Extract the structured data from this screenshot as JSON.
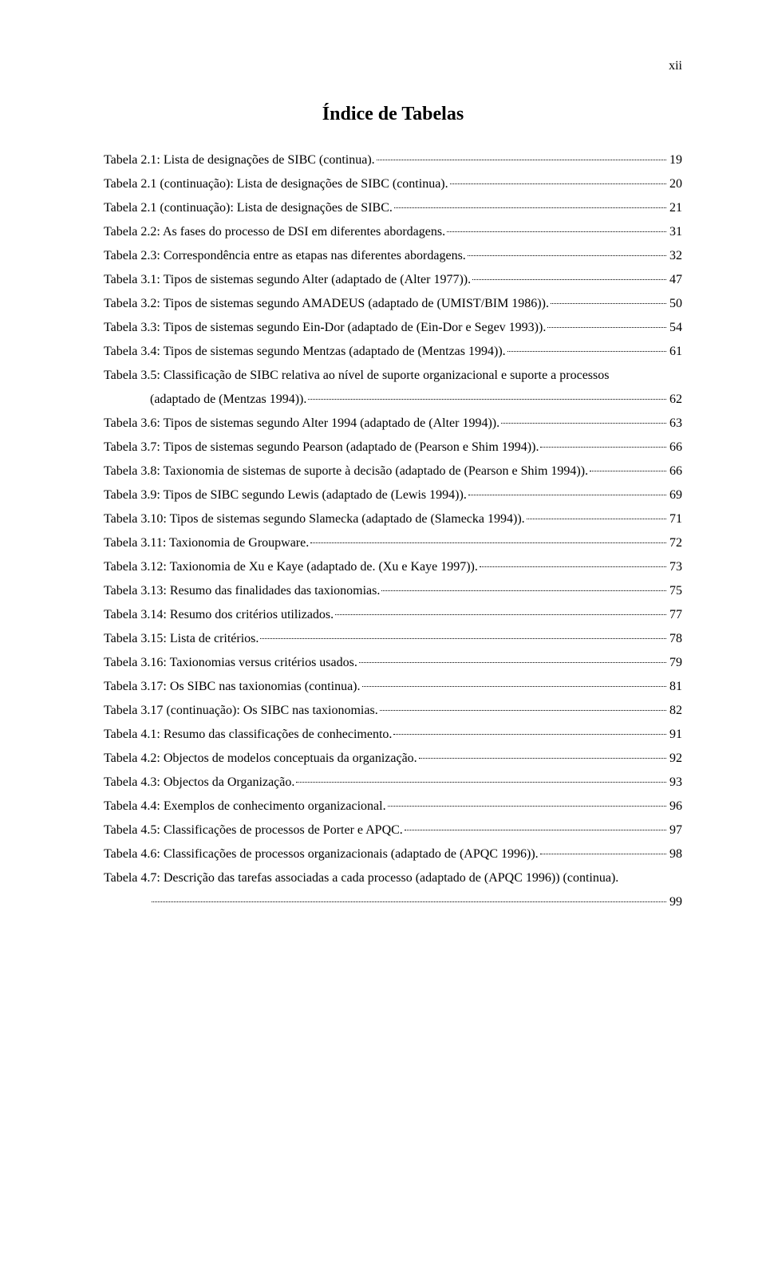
{
  "page_number_label": "xii",
  "title": "Índice de Tabelas",
  "entries": [
    {
      "text": "Tabela 2.1: Lista de designações de SIBC (continua).",
      "page": "19",
      "indent": false
    },
    {
      "text": "Tabela 2.1 (continuação): Lista de designações de SIBC (continua).",
      "page": "20",
      "indent": false
    },
    {
      "text": "Tabela 2.1 (continuação): Lista de designações de SIBC.",
      "page": "21",
      "indent": false
    },
    {
      "text": "Tabela 2.2: As fases do processo de DSI em diferentes abordagens.",
      "page": "31",
      "indent": false
    },
    {
      "text": "Tabela 2.3: Correspondência entre as etapas nas diferentes abordagens.",
      "page": "32",
      "indent": false
    },
    {
      "text": "Tabela 3.1: Tipos de sistemas segundo Alter (adaptado de (Alter 1977)).",
      "page": "47",
      "indent": false
    },
    {
      "text": "Tabela 3.2: Tipos de sistemas segundo AMADEUS (adaptado de (UMIST/BIM 1986)).",
      "page": "50",
      "indent": false
    },
    {
      "text": "Tabela 3.3: Tipos de sistemas segundo Ein-Dor (adaptado de (Ein-Dor e Segev 1993)).",
      "page": "54",
      "indent": false
    },
    {
      "text": "Tabela 3.4: Tipos de sistemas segundo Mentzas (adaptado de (Mentzas 1994)).",
      "page": "61",
      "indent": false
    },
    {
      "text": "Tabela 3.5: Classificação de SIBC relativa ao nível de suporte organizacional e suporte a processos",
      "page": "",
      "indent": false,
      "nolead": true
    },
    {
      "text": "(adaptado de (Mentzas 1994)).",
      "page": "62",
      "indent": true
    },
    {
      "text": "Tabela 3.6: Tipos de sistemas segundo Alter 1994 (adaptado de (Alter 1994)).",
      "page": "63",
      "indent": false
    },
    {
      "text": "Tabela 3.7: Tipos de sistemas segundo Pearson (adaptado de (Pearson e Shim 1994)).",
      "page": "66",
      "indent": false
    },
    {
      "text": "Tabela 3.8: Taxionomia de sistemas de suporte à decisão (adaptado de (Pearson e Shim 1994)).",
      "page": "66",
      "indent": false
    },
    {
      "text": "Tabela 3.9: Tipos de SIBC segundo Lewis (adaptado de (Lewis 1994)).",
      "page": "69",
      "indent": false
    },
    {
      "text": "Tabela 3.10: Tipos de sistemas segundo Slamecka (adaptado de (Slamecka 1994)).",
      "page": "71",
      "indent": false
    },
    {
      "text": "Tabela 3.11: Taxionomia de Groupware.",
      "page": "72",
      "indent": false
    },
    {
      "text": "Tabela 3.12: Taxionomia de Xu e Kaye (adaptado de. (Xu e Kaye 1997)).",
      "page": "73",
      "indent": false
    },
    {
      "text": "Tabela 3.13: Resumo das finalidades das taxionomias.",
      "page": "75",
      "indent": false
    },
    {
      "text": "Tabela 3.14: Resumo dos critérios utilizados.",
      "page": "77",
      "indent": false
    },
    {
      "text": "Tabela 3.15: Lista de critérios.",
      "page": "78",
      "indent": false
    },
    {
      "text": "Tabela 3.16: Taxionomias versus critérios usados.",
      "page": "79",
      "indent": false
    },
    {
      "text": "Tabela 3.17: Os SIBC nas taxionomias (continua).",
      "page": "81",
      "indent": false
    },
    {
      "text": "Tabela 3.17 (continuação): Os SIBC nas taxionomias.",
      "page": "82",
      "indent": false
    },
    {
      "text": "Tabela 4.1: Resumo das classificações de conhecimento.",
      "page": "91",
      "indent": false
    },
    {
      "text": "Tabela 4.2: Objectos de modelos conceptuais da organização.",
      "page": "92",
      "indent": false
    },
    {
      "text": "Tabela 4.3: Objectos da Organização.",
      "page": "93",
      "indent": false
    },
    {
      "text": "Tabela 4.4: Exemplos de conhecimento organizacional.",
      "page": "96",
      "indent": false
    },
    {
      "text": "Tabela 4.5: Classificações de processos de Porter e APQC.",
      "page": "97",
      "indent": false
    },
    {
      "text": "Tabela 4.6: Classificações de processos organizacionais (adaptado de (APQC 1996)).",
      "page": "98",
      "indent": false
    },
    {
      "text": "Tabela 4.7: Descrição das tarefas associadas a cada processo (adaptado de (APQC 1996)) (continua).",
      "page": "",
      "indent": false,
      "nolead": true
    },
    {
      "text": "",
      "page": "99",
      "indent": true
    }
  ]
}
